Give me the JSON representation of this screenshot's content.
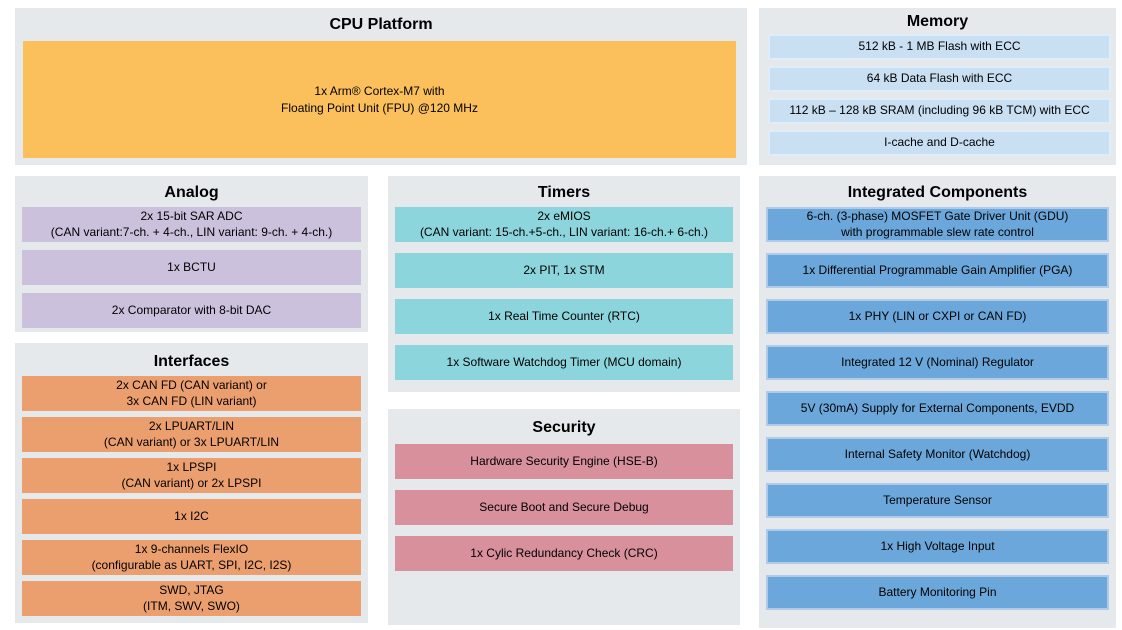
{
  "colors": {
    "panel-bg": "#e5e9ec",
    "cpu-block": "#fbc05c",
    "memory-row": "#c9dff2",
    "memory-row-border": "#dfecf9",
    "analog-row": "#cbc1dc",
    "interfaces-row": "#ec9f6e",
    "timers-row": "#8cd5dc",
    "security-row": "#d8909d",
    "integrated-row": "#6ba7db",
    "integrated-row-border": "#afcbe9",
    "text": "#000000"
  },
  "panels": {
    "cpu": {
      "title": "CPU Platform",
      "core": "1x Arm® Cortex-M7 with\nFloating Point Unit (FPU) @120 MHz"
    },
    "memory": {
      "title": "Memory",
      "rows": [
        "512 kB - 1 MB Flash with ECC",
        "64 kB Data Flash with ECC",
        "112 kB – 128 kB SRAM (including 96 kB TCM) with ECC",
        "I-cache and D-cache"
      ]
    },
    "analog": {
      "title": "Analog",
      "rows": [
        "2x 15-bit SAR ADC\n(CAN variant:7-ch. + 4-ch., LIN variant: 9-ch. + 4-ch.)",
        "1x BCTU",
        "2x Comparator with 8-bit DAC"
      ]
    },
    "interfaces": {
      "title": "Interfaces",
      "rows": [
        "2x CAN FD (CAN variant) or\n3x CAN FD (LIN variant)",
        "2x LPUART/LIN\n(CAN variant) or 3x LPUART/LIN",
        "1x LPSPI\n(CAN variant) or 2x LPSPI",
        "1x I2C",
        "1x 9-channels FlexIO\n(configurable as UART, SPI, I2C, I2S)",
        "SWD, JTAG\n(ITM, SWV, SWO)"
      ]
    },
    "timers": {
      "title": "Timers",
      "rows": [
        "2x eMIOS\n(CAN variant: 15-ch.+5-ch., LIN variant: 16-ch.+ 6-ch.)",
        "2x PIT, 1x STM",
        "1x Real Time Counter (RTC)",
        "1x Software Watchdog Timer (MCU domain)"
      ]
    },
    "security": {
      "title": "Security",
      "rows": [
        "Hardware Security Engine (HSE-B)",
        "Secure Boot and Secure Debug",
        "1x Cylic Redundancy Check (CRC)"
      ]
    },
    "integrated": {
      "title": "Integrated Components",
      "rows": [
        "6-ch. (3-phase) MOSFET Gate Driver Unit (GDU)\nwith programmable slew rate control",
        "1x Differential Programmable Gain Amplifier (PGA)",
        "1x PHY (LIN or CXPI or CAN FD)",
        "Integrated 12 V (Nominal) Regulator",
        "5V (30mA) Supply for External Components, EVDD",
        "Internal Safety Monitor (Watchdog)",
        "Temperature Sensor",
        "1x High Voltage Input",
        "Battery Monitoring Pin"
      ]
    }
  }
}
